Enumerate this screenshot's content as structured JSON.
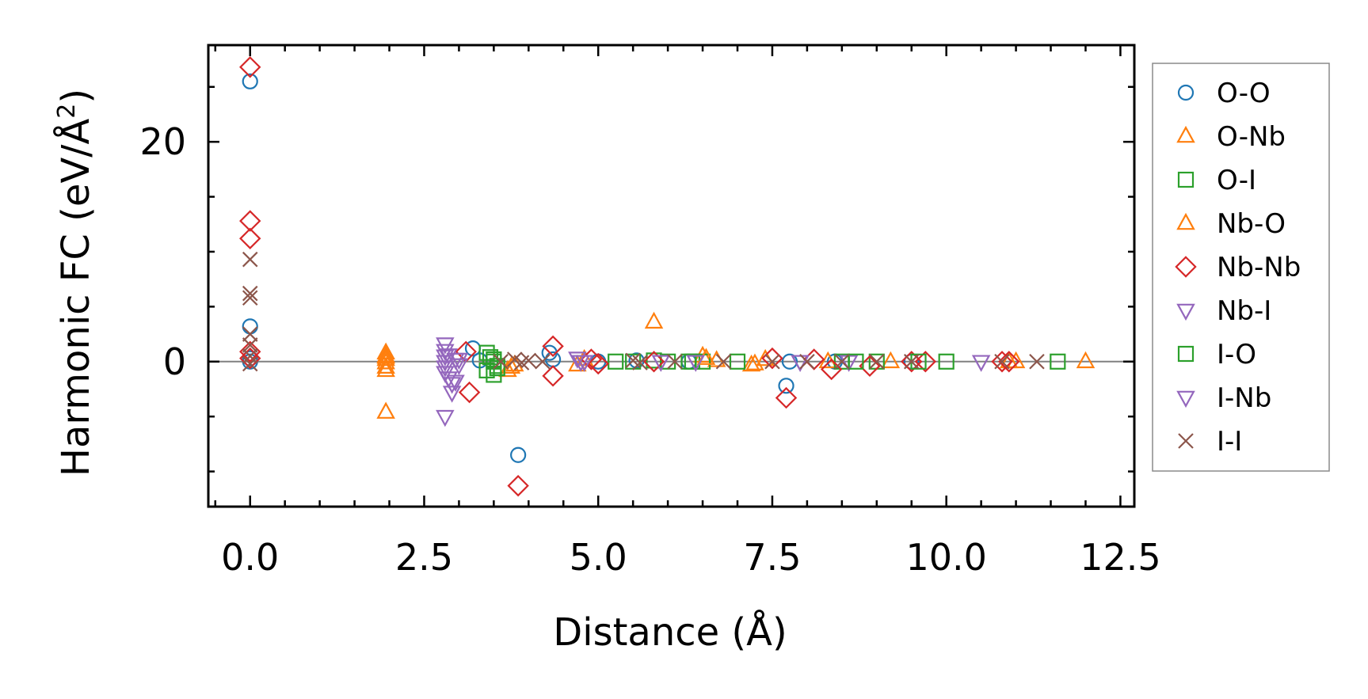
{
  "chart_data": {
    "type": "scatter",
    "title": "",
    "xlabel": "Distance (Å)",
    "ylabel_main": "Harmonic FC (eV/Å",
    "ylabel_sup": "2",
    "ylabel_end": ")",
    "xlim": [
      -0.6,
      12.7
    ],
    "ylim": [
      -13.2,
      28.8
    ],
    "xticks": [
      0.0,
      2.5,
      5.0,
      7.5,
      10.0,
      12.5
    ],
    "xtick_labels": [
      "0.0",
      "2.5",
      "5.0",
      "7.5",
      "10.0",
      "12.5"
    ],
    "yticks": [
      0,
      20
    ],
    "ytick_labels": [
      "0",
      "20"
    ],
    "reference_line_y": 0,
    "legend_position": "right",
    "series": [
      {
        "name": "O-O",
        "marker": "circle",
        "color": "#1f77b4",
        "x": [
          0.0,
          0.0,
          0.0,
          0.0,
          3.2,
          3.3,
          3.85,
          4.3,
          4.35,
          5.0,
          5.55,
          6.3,
          7.7,
          7.75,
          8.4,
          9.5
        ],
        "y": [
          25.5,
          3.2,
          0.3,
          0.0,
          1.2,
          0.1,
          -8.5,
          0.8,
          0.2,
          0.0,
          0.1,
          0.0,
          -2.2,
          0.0,
          0.0,
          0.0
        ]
      },
      {
        "name": "O-Nb",
        "marker": "triangle-up",
        "color": "#ff7f0e",
        "x": [
          1.95,
          1.95,
          1.95,
          1.95,
          1.95,
          1.95,
          3.7,
          3.8,
          4.7,
          4.8,
          5.8,
          6.5,
          6.7,
          7.2,
          7.4,
          8.3,
          9.2,
          10.9,
          11.0
        ],
        "y": [
          0.8,
          0.5,
          0.2,
          -0.1,
          -0.5,
          -4.6,
          -0.8,
          -0.3,
          -0.3,
          0.2,
          3.6,
          0.5,
          0.1,
          -0.3,
          0.2,
          0.0,
          0.0,
          0.0,
          0.0
        ]
      },
      {
        "name": "O-I",
        "marker": "square",
        "color": "#2ca02c",
        "x": [
          3.4,
          3.45,
          3.5,
          3.55,
          3.4,
          3.5,
          5.25,
          5.8,
          6.0,
          6.35,
          6.5,
          7.0,
          8.5,
          9.0,
          10.0,
          11.6
        ],
        "y": [
          0.8,
          0.4,
          0.0,
          -0.4,
          -0.8,
          -1.2,
          0.0,
          0.1,
          0.0,
          0.0,
          0.0,
          0.0,
          0.0,
          0.0,
          0.0,
          0.0
        ]
      },
      {
        "name": "Nb-O",
        "marker": "triangle-up",
        "color": "#ff7f0e",
        "x": [
          1.95,
          1.95,
          3.75,
          6.55,
          7.25,
          12.0
        ],
        "y": [
          0.4,
          -0.8,
          -0.5,
          0.3,
          -0.2,
          0.0
        ]
      },
      {
        "name": "Nb-Nb",
        "marker": "diamond",
        "color": "#d62728",
        "x": [
          0.0,
          0.0,
          0.0,
          0.0,
          0.0,
          3.1,
          3.15,
          3.85,
          4.35,
          4.35,
          4.9,
          5.0,
          5.8,
          7.5,
          7.7,
          8.1,
          8.35,
          8.9,
          9.5,
          9.7,
          10.8,
          10.9
        ],
        "y": [
          26.8,
          12.8,
          11.2,
          0.9,
          0.3,
          0.9,
          -2.8,
          -11.3,
          1.4,
          -1.3,
          0.2,
          -0.2,
          0.0,
          0.3,
          -3.3,
          0.2,
          -0.7,
          -0.4,
          0.0,
          0.0,
          0.0,
          0.0
        ]
      },
      {
        "name": "Nb-I",
        "marker": "triangle-down",
        "color": "#9467bd",
        "x": [
          2.8,
          2.8,
          2.8,
          2.8,
          2.8,
          2.8,
          2.85,
          2.9,
          2.95,
          3.0,
          2.9,
          2.8,
          4.7,
          4.8,
          5.9,
          7.9,
          8.6
        ],
        "y": [
          1.6,
          1.0,
          0.5,
          0.0,
          -0.5,
          -1.0,
          -1.5,
          -2.0,
          0.2,
          -0.3,
          -2.8,
          -5.0,
          0.3,
          0.0,
          0.0,
          0.0,
          0.0
        ]
      },
      {
        "name": "I-O",
        "marker": "square",
        "color": "#2ca02c",
        "x": [
          3.5,
          3.55,
          5.5,
          6.3,
          8.7,
          9.6
        ],
        "y": [
          0.2,
          -0.6,
          0.0,
          0.0,
          0.0,
          0.0
        ]
      },
      {
        "name": "I-Nb",
        "marker": "triangle-down",
        "color": "#9467bd",
        "x": [
          2.85,
          2.95,
          3.0,
          4.75,
          6.4,
          7.9,
          10.5
        ],
        "y": [
          0.6,
          -1.8,
          0.2,
          0.0,
          0.0,
          0.0,
          0.0
        ]
      },
      {
        "name": "I-I",
        "marker": "x",
        "color": "#8c564b",
        "x": [
          0.0,
          0.0,
          0.0,
          0.0,
          0.0,
          0.0,
          0.0,
          3.6,
          3.8,
          3.9,
          4.0,
          4.2,
          5.5,
          5.6,
          6.1,
          6.8,
          7.5,
          8.0,
          8.5,
          9.0,
          9.5,
          10.8,
          11.3
        ],
        "y": [
          9.3,
          6.2,
          5.8,
          2.5,
          1.5,
          0.5,
          -0.2,
          0.0,
          0.2,
          -0.1,
          0.1,
          0.0,
          0.1,
          -0.1,
          0.0,
          0.0,
          0.0,
          0.0,
          0.0,
          0.0,
          0.0,
          0.0,
          0.0
        ]
      }
    ]
  }
}
